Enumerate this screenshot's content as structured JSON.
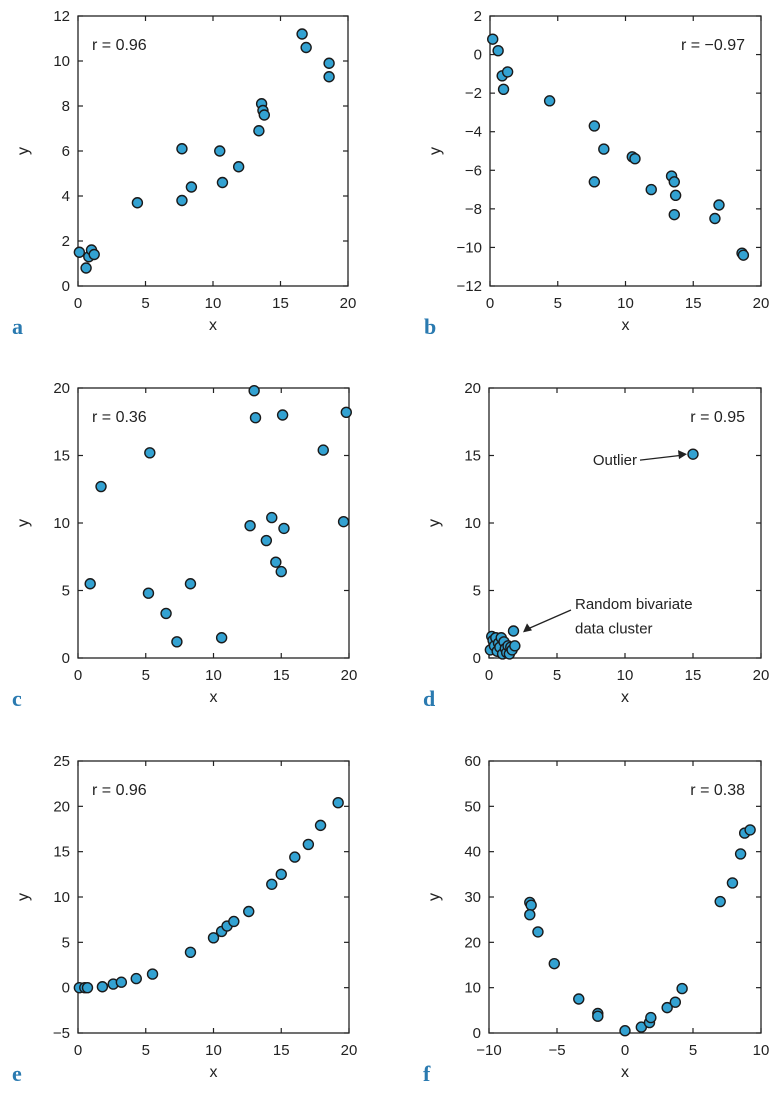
{
  "chart_data": [
    {
      "panel_label": "a",
      "type": "scatter",
      "xlabel": "x",
      "ylabel": "y",
      "xlim": [
        0,
        20
      ],
      "ylim": [
        0,
        12
      ],
      "xticks": [
        0,
        5,
        10,
        15,
        20
      ],
      "yticks": [
        0,
        2,
        4,
        6,
        8,
        10,
        12
      ],
      "annotation": "r = 0.96",
      "annotation_position": "top-left",
      "points": [
        {
          "x": 0.1,
          "y": 1.5
        },
        {
          "x": 0.6,
          "y": 0.8
        },
        {
          "x": 0.8,
          "y": 1.3
        },
        {
          "x": 1.0,
          "y": 1.6
        },
        {
          "x": 1.2,
          "y": 1.4
        },
        {
          "x": 4.4,
          "y": 3.7
        },
        {
          "x": 7.7,
          "y": 3.8
        },
        {
          "x": 7.7,
          "y": 6.1
        },
        {
          "x": 8.4,
          "y": 4.4
        },
        {
          "x": 10.5,
          "y": 6.0
        },
        {
          "x": 10.7,
          "y": 4.6
        },
        {
          "x": 11.9,
          "y": 5.3
        },
        {
          "x": 13.4,
          "y": 6.9
        },
        {
          "x": 13.6,
          "y": 8.1
        },
        {
          "x": 13.7,
          "y": 7.8
        },
        {
          "x": 13.8,
          "y": 7.6
        },
        {
          "x": 16.6,
          "y": 11.2
        },
        {
          "x": 16.9,
          "y": 10.6
        },
        {
          "x": 18.6,
          "y": 9.9
        },
        {
          "x": 18.6,
          "y": 9.3
        }
      ]
    },
    {
      "panel_label": "b",
      "type": "scatter",
      "xlabel": "x",
      "ylabel": "y",
      "xlim": [
        0,
        20
      ],
      "ylim": [
        -12,
        2
      ],
      "xticks": [
        0,
        5,
        10,
        15,
        20
      ],
      "yticks": [
        -12,
        -10,
        -8,
        -6,
        -4,
        -2,
        0,
        2
      ],
      "annotation": "r = −0.97",
      "annotation_position": "top-right",
      "points": [
        {
          "x": 0.2,
          "y": 0.8
        },
        {
          "x": 0.6,
          "y": 0.2
        },
        {
          "x": 0.9,
          "y": -1.1
        },
        {
          "x": 1.0,
          "y": -1.8
        },
        {
          "x": 1.3,
          "y": -0.9
        },
        {
          "x": 4.4,
          "y": -2.4
        },
        {
          "x": 7.7,
          "y": -3.7
        },
        {
          "x": 7.7,
          "y": -6.6
        },
        {
          "x": 8.4,
          "y": -4.9
        },
        {
          "x": 10.5,
          "y": -5.3
        },
        {
          "x": 10.7,
          "y": -5.4
        },
        {
          "x": 11.9,
          "y": -7.0
        },
        {
          "x": 13.4,
          "y": -6.3
        },
        {
          "x": 13.6,
          "y": -6.6
        },
        {
          "x": 13.7,
          "y": -7.3
        },
        {
          "x": 13.6,
          "y": -8.3
        },
        {
          "x": 16.6,
          "y": -8.5
        },
        {
          "x": 16.9,
          "y": -7.8
        },
        {
          "x": 18.6,
          "y": -10.3
        },
        {
          "x": 18.7,
          "y": -10.4
        }
      ]
    },
    {
      "panel_label": "c",
      "type": "scatter",
      "xlabel": "x",
      "ylabel": "y",
      "xlim": [
        0,
        20
      ],
      "ylim": [
        0,
        20
      ],
      "xticks": [
        0,
        5,
        10,
        15,
        20
      ],
      "yticks": [
        0,
        5,
        10,
        15,
        20
      ],
      "annotation": "r = 0.36",
      "annotation_position": "top-left",
      "points": [
        {
          "x": 0.9,
          "y": 5.5
        },
        {
          "x": 1.7,
          "y": 12.7
        },
        {
          "x": 5.2,
          "y": 4.8
        },
        {
          "x": 5.3,
          "y": 15.2
        },
        {
          "x": 6.5,
          "y": 3.3
        },
        {
          "x": 7.3,
          "y": 1.2
        },
        {
          "x": 8.3,
          "y": 5.5
        },
        {
          "x": 10.6,
          "y": 1.5
        },
        {
          "x": 12.7,
          "y": 9.8
        },
        {
          "x": 13.0,
          "y": 19.8
        },
        {
          "x": 13.1,
          "y": 17.8
        },
        {
          "x": 13.9,
          "y": 8.7
        },
        {
          "x": 14.3,
          "y": 10.4
        },
        {
          "x": 14.6,
          "y": 7.1
        },
        {
          "x": 15.0,
          "y": 6.4
        },
        {
          "x": 15.1,
          "y": 18.0
        },
        {
          "x": 15.2,
          "y": 9.6
        },
        {
          "x": 18.1,
          "y": 15.4
        },
        {
          "x": 19.6,
          "y": 10.1
        },
        {
          "x": 19.8,
          "y": 18.2
        }
      ]
    },
    {
      "panel_label": "d",
      "type": "scatter",
      "xlabel": "x",
      "ylabel": "y",
      "xlim": [
        0,
        20
      ],
      "ylim": [
        0,
        20
      ],
      "xticks": [
        0,
        5,
        10,
        15,
        20
      ],
      "yticks": [
        0,
        5,
        10,
        15,
        20
      ],
      "annotation": "r = 0.95",
      "annotation_position": "top-right",
      "callouts": [
        "Outlier",
        "Random bivariate",
        "data cluster"
      ],
      "points": [
        {
          "x": 0.1,
          "y": 0.6
        },
        {
          "x": 0.2,
          "y": 1.6
        },
        {
          "x": 0.3,
          "y": 1.3
        },
        {
          "x": 0.4,
          "y": 0.9
        },
        {
          "x": 0.5,
          "y": 1.5
        },
        {
          "x": 0.6,
          "y": 0.5
        },
        {
          "x": 0.7,
          "y": 1.1
        },
        {
          "x": 0.8,
          "y": 0.8
        },
        {
          "x": 0.9,
          "y": 1.5
        },
        {
          "x": 1.0,
          "y": 0.3
        },
        {
          "x": 1.1,
          "y": 1.2
        },
        {
          "x": 1.2,
          "y": 0.7
        },
        {
          "x": 1.3,
          "y": 0.4
        },
        {
          "x": 1.4,
          "y": 0.9
        },
        {
          "x": 1.5,
          "y": 0.3
        },
        {
          "x": 1.6,
          "y": 0.8
        },
        {
          "x": 1.7,
          "y": 0.6
        },
        {
          "x": 1.8,
          "y": 2.0
        },
        {
          "x": 1.9,
          "y": 0.9
        },
        {
          "x": 15.0,
          "y": 15.1
        }
      ]
    },
    {
      "panel_label": "e",
      "type": "scatter",
      "xlabel": "x",
      "ylabel": "y",
      "xlim": [
        0,
        20
      ],
      "ylim": [
        -5,
        25
      ],
      "xticks": [
        0,
        5,
        10,
        15,
        20
      ],
      "yticks": [
        -5,
        0,
        5,
        10,
        15,
        20,
        25
      ],
      "annotation": "r = 0.96",
      "annotation_position": "top-left",
      "points": [
        {
          "x": 0.1,
          "y": 0.0
        },
        {
          "x": 0.5,
          "y": 0.0
        },
        {
          "x": 0.7,
          "y": 0.0
        },
        {
          "x": 1.8,
          "y": 0.1
        },
        {
          "x": 2.6,
          "y": 0.4
        },
        {
          "x": 3.2,
          "y": 0.6
        },
        {
          "x": 4.3,
          "y": 1.0
        },
        {
          "x": 5.5,
          "y": 1.5
        },
        {
          "x": 8.3,
          "y": 3.9
        },
        {
          "x": 10.0,
          "y": 5.5
        },
        {
          "x": 10.6,
          "y": 6.2
        },
        {
          "x": 11.0,
          "y": 6.8
        },
        {
          "x": 11.5,
          "y": 7.3
        },
        {
          "x": 12.6,
          "y": 8.4
        },
        {
          "x": 14.3,
          "y": 11.4
        },
        {
          "x": 15.0,
          "y": 12.5
        },
        {
          "x": 16.0,
          "y": 14.4
        },
        {
          "x": 17.0,
          "y": 15.8
        },
        {
          "x": 17.9,
          "y": 17.9
        },
        {
          "x": 19.2,
          "y": 20.4
        }
      ]
    },
    {
      "panel_label": "f",
      "type": "scatter",
      "xlabel": "x",
      "ylabel": "y",
      "xlim": [
        -10,
        10
      ],
      "ylim": [
        0,
        60
      ],
      "xticks": [
        -10,
        -5,
        0,
        5,
        10
      ],
      "yticks": [
        0,
        10,
        20,
        30,
        40,
        50,
        60
      ],
      "annotation": "r = 0.38",
      "annotation_position": "top-right",
      "points": [
        {
          "x": -7.0,
          "y": 28.8
        },
        {
          "x": -6.9,
          "y": 28.2
        },
        {
          "x": -7.0,
          "y": 26.1
        },
        {
          "x": -6.4,
          "y": 22.3
        },
        {
          "x": -5.2,
          "y": 15.3
        },
        {
          "x": -3.4,
          "y": 7.5
        },
        {
          "x": -2.0,
          "y": 4.3
        },
        {
          "x": -2.0,
          "y": 3.7
        },
        {
          "x": 0.0,
          "y": 0.5
        },
        {
          "x": 1.2,
          "y": 1.3
        },
        {
          "x": 1.8,
          "y": 2.3
        },
        {
          "x": 1.9,
          "y": 3.4
        },
        {
          "x": 3.1,
          "y": 5.6
        },
        {
          "x": 3.7,
          "y": 6.8
        },
        {
          "x": 4.2,
          "y": 9.8
        },
        {
          "x": 7.0,
          "y": 29.0
        },
        {
          "x": 7.9,
          "y": 33.1
        },
        {
          "x": 8.5,
          "y": 39.5
        },
        {
          "x": 8.8,
          "y": 44.1
        },
        {
          "x": 9.2,
          "y": 44.8
        }
      ]
    }
  ]
}
